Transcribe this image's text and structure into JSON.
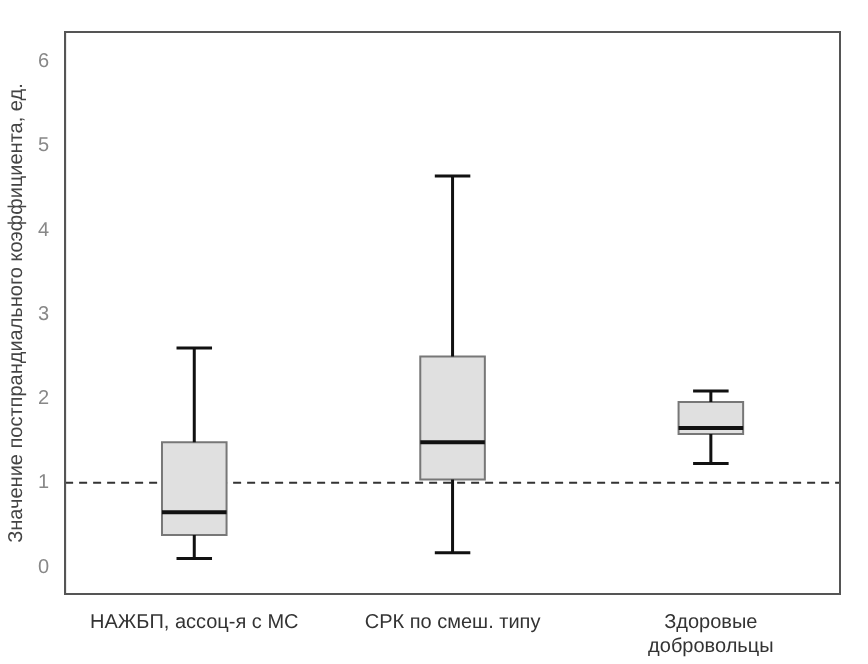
{
  "chart_data": {
    "type": "box",
    "ylabel": "Значение постпрандиального коэффициента, ед.",
    "categories": [
      "НАЖБП, ассоц-я с МС",
      "СРК по смеш. типу",
      "Здоровые\nдобровольцы"
    ],
    "boxes": [
      {
        "low": 0.1,
        "q1": 0.38,
        "median": 0.65,
        "q3": 1.48,
        "high": 2.6
      },
      {
        "low": 0.17,
        "q1": 1.04,
        "median": 1.48,
        "q3": 2.5,
        "high": 4.64
      },
      {
        "low": 1.23,
        "q1": 1.58,
        "median": 1.65,
        "q3": 1.96,
        "high": 2.09
      }
    ],
    "color": "#e0e0e0",
    "ylim": [
      -0.32,
      6.35
    ],
    "yticks": [
      0,
      1,
      2,
      3,
      4,
      5,
      6
    ],
    "grid": false,
    "legend": false,
    "ref_lines": [
      {
        "axis": "y",
        "value": 1,
        "line_style": "dashed",
        "color": "#333333"
      }
    ]
  }
}
